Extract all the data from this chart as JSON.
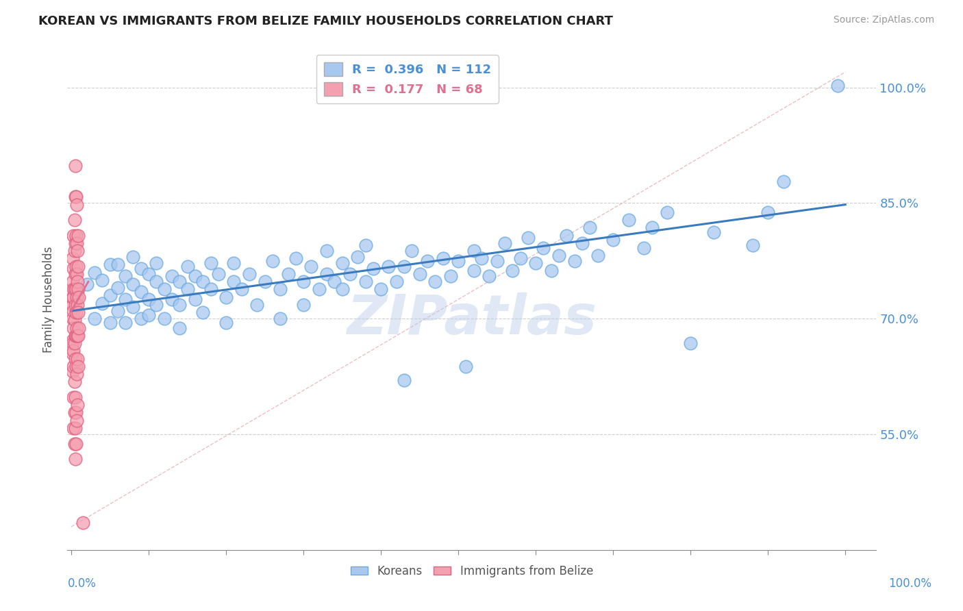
{
  "title": "KOREAN VS IMMIGRANTS FROM BELIZE FAMILY HOUSEHOLDS CORRELATION CHART",
  "source_text": "Source: ZipAtlas.com",
  "ylabel": "Family Households",
  "legend_entries": [
    {
      "label": "Koreans",
      "R": "0.396",
      "N": "112",
      "color": "#a8c8f0"
    },
    {
      "label": "Immigrants from Belize",
      "R": "0.177",
      "N": "68",
      "color": "#f4a0b0"
    }
  ],
  "ytick_labels": [
    "55.0%",
    "70.0%",
    "85.0%",
    "100.0%"
  ],
  "ytick_values": [
    0.55,
    0.7,
    0.85,
    1.0
  ],
  "ymin": 0.4,
  "ymax": 1.05,
  "xmin": -0.005,
  "xmax": 1.04,
  "watermark": "ZIPatlas",
  "watermark_color": "#b8cce8",
  "background_color": "#ffffff",
  "title_fontsize": 13,
  "axis_color": "#4a90d9",
  "grid_color": "#bbbbbb",
  "blue_trend_x": [
    0.0,
    1.0
  ],
  "blue_trend_y": [
    0.71,
    0.848
  ],
  "pink_trend_x": [
    0.0,
    0.022
  ],
  "pink_trend_y": [
    0.71,
    0.748
  ],
  "ref_line_x": [
    0.0,
    1.0
  ],
  "ref_line_y": [
    0.43,
    1.02
  ],
  "korean_points": [
    [
      0.02,
      0.745
    ],
    [
      0.03,
      0.7
    ],
    [
      0.03,
      0.76
    ],
    [
      0.04,
      0.72
    ],
    [
      0.04,
      0.75
    ],
    [
      0.05,
      0.73
    ],
    [
      0.05,
      0.77
    ],
    [
      0.05,
      0.695
    ],
    [
      0.06,
      0.74
    ],
    [
      0.06,
      0.71
    ],
    [
      0.06,
      0.77
    ],
    [
      0.07,
      0.725
    ],
    [
      0.07,
      0.755
    ],
    [
      0.07,
      0.695
    ],
    [
      0.08,
      0.745
    ],
    [
      0.08,
      0.715
    ],
    [
      0.08,
      0.78
    ],
    [
      0.09,
      0.735
    ],
    [
      0.09,
      0.7
    ],
    [
      0.09,
      0.765
    ],
    [
      0.1,
      0.725
    ],
    [
      0.1,
      0.758
    ],
    [
      0.1,
      0.705
    ],
    [
      0.11,
      0.748
    ],
    [
      0.11,
      0.718
    ],
    [
      0.11,
      0.772
    ],
    [
      0.12,
      0.738
    ],
    [
      0.12,
      0.7
    ],
    [
      0.13,
      0.755
    ],
    [
      0.13,
      0.725
    ],
    [
      0.14,
      0.748
    ],
    [
      0.14,
      0.718
    ],
    [
      0.14,
      0.688
    ],
    [
      0.15,
      0.768
    ],
    [
      0.15,
      0.738
    ],
    [
      0.16,
      0.755
    ],
    [
      0.16,
      0.725
    ],
    [
      0.17,
      0.748
    ],
    [
      0.17,
      0.708
    ],
    [
      0.18,
      0.772
    ],
    [
      0.18,
      0.738
    ],
    [
      0.19,
      0.758
    ],
    [
      0.2,
      0.728
    ],
    [
      0.2,
      0.695
    ],
    [
      0.21,
      0.748
    ],
    [
      0.21,
      0.772
    ],
    [
      0.22,
      0.738
    ],
    [
      0.23,
      0.758
    ],
    [
      0.24,
      0.718
    ],
    [
      0.25,
      0.748
    ],
    [
      0.26,
      0.775
    ],
    [
      0.27,
      0.738
    ],
    [
      0.27,
      0.7
    ],
    [
      0.28,
      0.758
    ],
    [
      0.29,
      0.778
    ],
    [
      0.3,
      0.748
    ],
    [
      0.3,
      0.718
    ],
    [
      0.31,
      0.768
    ],
    [
      0.32,
      0.738
    ],
    [
      0.33,
      0.758
    ],
    [
      0.33,
      0.788
    ],
    [
      0.34,
      0.748
    ],
    [
      0.35,
      0.772
    ],
    [
      0.35,
      0.738
    ],
    [
      0.36,
      0.758
    ],
    [
      0.37,
      0.78
    ],
    [
      0.38,
      0.748
    ],
    [
      0.38,
      0.795
    ],
    [
      0.39,
      0.765
    ],
    [
      0.4,
      0.738
    ],
    [
      0.41,
      0.768
    ],
    [
      0.42,
      0.748
    ],
    [
      0.43,
      0.768
    ],
    [
      0.43,
      0.62
    ],
    [
      0.44,
      0.788
    ],
    [
      0.45,
      0.758
    ],
    [
      0.46,
      0.775
    ],
    [
      0.47,
      0.748
    ],
    [
      0.48,
      0.778
    ],
    [
      0.49,
      0.755
    ],
    [
      0.5,
      0.775
    ],
    [
      0.51,
      0.638
    ],
    [
      0.52,
      0.788
    ],
    [
      0.52,
      0.762
    ],
    [
      0.53,
      0.778
    ],
    [
      0.54,
      0.755
    ],
    [
      0.55,
      0.775
    ],
    [
      0.56,
      0.798
    ],
    [
      0.57,
      0.762
    ],
    [
      0.58,
      0.778
    ],
    [
      0.59,
      0.805
    ],
    [
      0.6,
      0.772
    ],
    [
      0.61,
      0.792
    ],
    [
      0.62,
      0.762
    ],
    [
      0.63,
      0.782
    ],
    [
      0.64,
      0.808
    ],
    [
      0.65,
      0.775
    ],
    [
      0.66,
      0.798
    ],
    [
      0.67,
      0.818
    ],
    [
      0.68,
      0.782
    ],
    [
      0.7,
      0.802
    ],
    [
      0.72,
      0.828
    ],
    [
      0.74,
      0.792
    ],
    [
      0.75,
      0.818
    ],
    [
      0.77,
      0.838
    ],
    [
      0.8,
      0.668
    ],
    [
      0.83,
      0.812
    ],
    [
      0.88,
      0.795
    ],
    [
      0.9,
      0.838
    ],
    [
      0.92,
      0.878
    ],
    [
      0.99,
      1.002
    ]
  ],
  "belize_points": [
    [
      0.002,
      0.718
    ],
    [
      0.002,
      0.672
    ],
    [
      0.002,
      0.728
    ],
    [
      0.002,
      0.655
    ],
    [
      0.002,
      0.7
    ],
    [
      0.002,
      0.748
    ],
    [
      0.002,
      0.668
    ],
    [
      0.002,
      0.632
    ],
    [
      0.002,
      0.778
    ],
    [
      0.003,
      0.71
    ],
    [
      0.003,
      0.658
    ],
    [
      0.003,
      0.738
    ],
    [
      0.003,
      0.688
    ],
    [
      0.003,
      0.765
    ],
    [
      0.003,
      0.638
    ],
    [
      0.003,
      0.598
    ],
    [
      0.003,
      0.558
    ],
    [
      0.003,
      0.808
    ],
    [
      0.003,
      0.728
    ],
    [
      0.004,
      0.698
    ],
    [
      0.004,
      0.668
    ],
    [
      0.004,
      0.738
    ],
    [
      0.004,
      0.618
    ],
    [
      0.004,
      0.788
    ],
    [
      0.004,
      0.578
    ],
    [
      0.004,
      0.828
    ],
    [
      0.004,
      0.538
    ],
    [
      0.005,
      0.718
    ],
    [
      0.005,
      0.678
    ],
    [
      0.005,
      0.758
    ],
    [
      0.005,
      0.648
    ],
    [
      0.005,
      0.798
    ],
    [
      0.005,
      0.598
    ],
    [
      0.005,
      0.858
    ],
    [
      0.005,
      0.558
    ],
    [
      0.005,
      0.898
    ],
    [
      0.005,
      0.518
    ],
    [
      0.006,
      0.708
    ],
    [
      0.006,
      0.738
    ],
    [
      0.006,
      0.678
    ],
    [
      0.006,
      0.768
    ],
    [
      0.006,
      0.638
    ],
    [
      0.006,
      0.808
    ],
    [
      0.006,
      0.578
    ],
    [
      0.006,
      0.858
    ],
    [
      0.006,
      0.538
    ],
    [
      0.007,
      0.728
    ],
    [
      0.007,
      0.688
    ],
    [
      0.007,
      0.758
    ],
    [
      0.007,
      0.628
    ],
    [
      0.007,
      0.798
    ],
    [
      0.007,
      0.568
    ],
    [
      0.007,
      0.848
    ],
    [
      0.008,
      0.718
    ],
    [
      0.008,
      0.678
    ],
    [
      0.008,
      0.748
    ],
    [
      0.008,
      0.648
    ],
    [
      0.008,
      0.788
    ],
    [
      0.008,
      0.588
    ],
    [
      0.009,
      0.708
    ],
    [
      0.009,
      0.738
    ],
    [
      0.009,
      0.678
    ],
    [
      0.009,
      0.768
    ],
    [
      0.009,
      0.638
    ],
    [
      0.009,
      0.808
    ],
    [
      0.01,
      0.728
    ],
    [
      0.01,
      0.688
    ],
    [
      0.015,
      0.435
    ]
  ]
}
